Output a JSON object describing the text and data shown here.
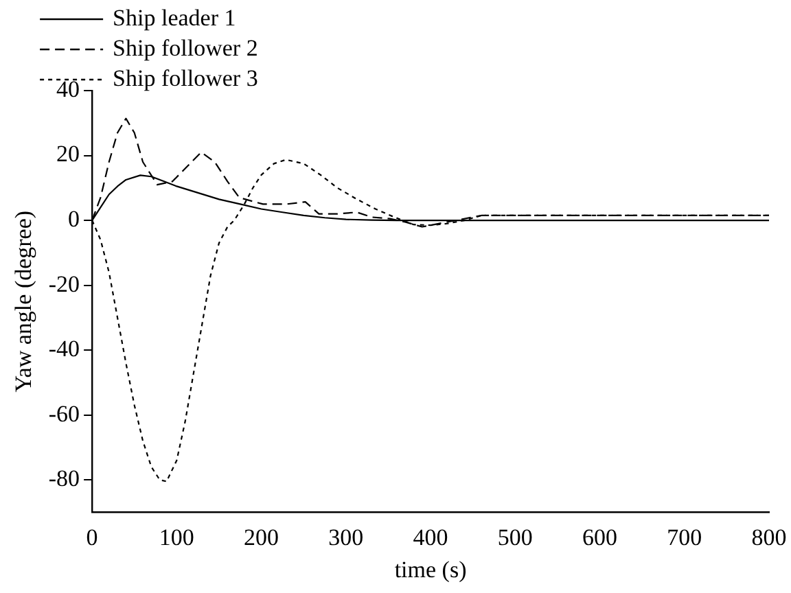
{
  "chart_data": {
    "type": "line",
    "xlabel": "time (s)",
    "ylabel": "Yaw angle (degree)",
    "xlim": [
      0,
      800
    ],
    "xticks": [
      0,
      100,
      200,
      300,
      400,
      500,
      600,
      700,
      800
    ],
    "ylim": [
      -90,
      40
    ],
    "yticks": [
      -80,
      -60,
      -40,
      -20,
      0,
      20,
      40
    ],
    "grid": false,
    "legend": "top left",
    "marker": "none",
    "series": [
      {
        "name": "Ship leader 1",
        "color": "#000000",
        "line_style": "solid",
        "x": [
          0,
          10,
          20,
          30,
          40,
          57,
          70,
          85,
          100,
          125,
          150,
          175,
          200,
          225,
          250,
          275,
          300,
          330,
          360,
          400,
          800
        ],
        "values": [
          0,
          4,
          8,
          10.5,
          12.5,
          13.9,
          13.5,
          12,
          10.5,
          8.5,
          6.5,
          5,
          3.5,
          2.5,
          1.5,
          0.8,
          0.3,
          0.1,
          0,
          0,
          0
        ]
      },
      {
        "name": "Ship follower 2",
        "color": "#000000",
        "line_style": "dashed",
        "x": [
          0,
          10,
          20,
          30,
          40,
          50,
          60,
          77,
          95,
          110,
          129,
          145,
          160,
          174,
          202,
          230,
          252,
          268,
          290,
          313,
          330,
          352,
          370,
          390,
          420,
          460,
          800
        ],
        "values": [
          0,
          7,
          18,
          27,
          31.4,
          27,
          18,
          11,
          12,
          16,
          21,
          18,
          12,
          7,
          5,
          5,
          5.7,
          2,
          2,
          2.5,
          1,
          0.5,
          -0.5,
          -2,
          -0.5,
          1.5,
          1.5
        ]
      },
      {
        "name": "Ship follower 3",
        "color": "#000000",
        "line_style": "dotted",
        "x": [
          0,
          10,
          20,
          30,
          40,
          50,
          60,
          70,
          80,
          88,
          100,
          110,
          120,
          130,
          140,
          150,
          160,
          168,
          180,
          190,
          200,
          215,
          229,
          250,
          270,
          290,
          313,
          335,
          357,
          380,
          400,
          420,
          440,
          460,
          800
        ],
        "values": [
          0,
          -6,
          -16,
          -30,
          -44,
          -57,
          -68,
          -76,
          -80,
          -80.5,
          -74,
          -62,
          -47,
          -32,
          -17,
          -7,
          -2,
          0,
          5,
          10,
          14,
          17.5,
          18.7,
          17.5,
          14,
          10,
          6.5,
          3.5,
          1,
          -1.3,
          -1.5,
          -1,
          0,
          1.5,
          1.5
        ]
      }
    ]
  }
}
